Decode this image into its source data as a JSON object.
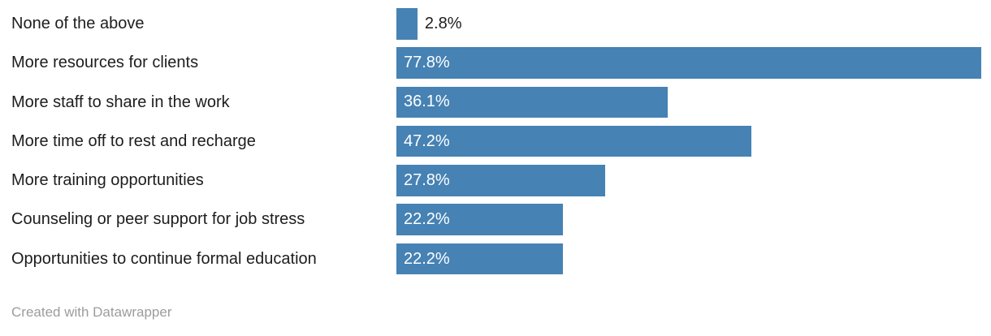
{
  "chart_data": {
    "type": "bar",
    "orientation": "horizontal",
    "title": "",
    "categories": [
      "None of the above",
      "More resources for clients",
      "More staff to share in the work",
      "More time off to rest and recharge",
      "More training opportunities",
      "Counseling or peer support for job stress",
      "Opportunities to continue formal education"
    ],
    "values": [
      2.8,
      77.8,
      36.1,
      47.2,
      27.8,
      22.2,
      22.2
    ],
    "value_labels": [
      "2.8%",
      "77.8%",
      "36.1%",
      "47.2%",
      "27.8%",
      "22.2%",
      "22.2%"
    ],
    "xlim": [
      0,
      77.8
    ],
    "grid": false,
    "legend": "none",
    "bar_color": "#4682b4",
    "value_label_inside_color": "#ffffff",
    "value_label_outside_color": "#1d1d1d",
    "inside_label_min_value": 10
  },
  "footer": {
    "credit": "Created with Datawrapper"
  }
}
